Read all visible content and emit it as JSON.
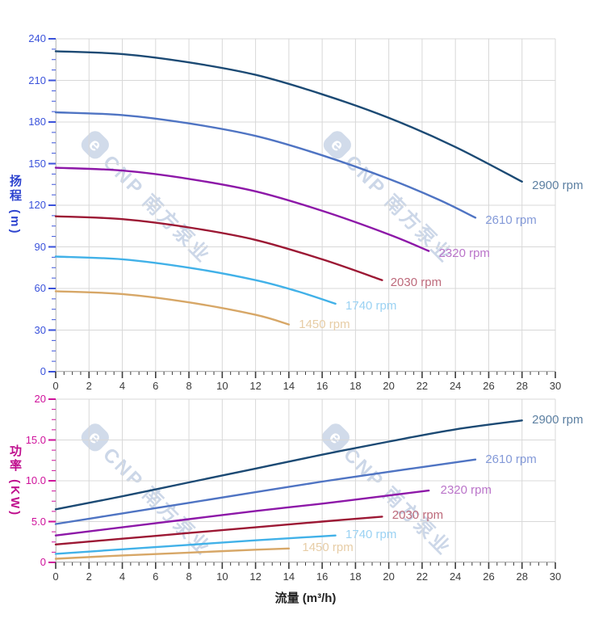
{
  "colors": {
    "grid": "#d8d8d8",
    "y_axis_line": "#c4c4c4",
    "x_axis_line": "#b4b4b4",
    "x_tick": "#3c3c3c",
    "x_tick_label": "#3c3c3c"
  },
  "watermark": {
    "logo_glyph": "e",
    "text": "CNP 南方泵业"
  },
  "chart_data": [
    {
      "type": "line",
      "title": "",
      "x_axis": {
        "min": 0,
        "max": 30,
        "major": 2,
        "minor": 0.5,
        "title": "",
        "tick_labels": [
          "0",
          "2",
          "4",
          "6",
          "8",
          "10",
          "12",
          "14",
          "16",
          "18",
          "20",
          "22",
          "24",
          "26",
          "28",
          "30"
        ]
      },
      "y_axis": {
        "min": 0,
        "max": 240,
        "major": 30,
        "minor": 7.5,
        "title": "扬程 (m)",
        "color": "#3a52db",
        "title_color": "#2d43cf",
        "tick_labels": [
          "0",
          "30",
          "60",
          "90",
          "120",
          "150",
          "180",
          "210",
          "240"
        ]
      },
      "grid": true,
      "legend_position": "curve-end-labels",
      "series": [
        {
          "name": "2900 rpm",
          "color": "#1c4a74",
          "label_color": "#5d80a2",
          "points": [
            [
              0,
              231
            ],
            [
              4,
              229
            ],
            [
              8,
              223
            ],
            [
              12,
              214
            ],
            [
              16,
              200
            ],
            [
              20,
              183
            ],
            [
              24,
              162
            ],
            [
              28,
              137
            ]
          ],
          "label_at": [
            28.6,
            134
          ]
        },
        {
          "name": "2610 rpm",
          "color": "#4f74c3",
          "label_color": "#8399d8",
          "points": [
            [
              0,
              187
            ],
            [
              4,
              185
            ],
            [
              8,
              179
            ],
            [
              12,
              170
            ],
            [
              16,
              156
            ],
            [
              20,
              139
            ],
            [
              23,
              124
            ],
            [
              25.2,
              111
            ]
          ],
          "label_at": [
            25.8,
            109
          ]
        },
        {
          "name": "2320 rpm",
          "color": "#8d18a8",
          "label_color": "#ba74c9",
          "points": [
            [
              0,
              147
            ],
            [
              4,
              145
            ],
            [
              8,
              139
            ],
            [
              12,
              130
            ],
            [
              16,
              116
            ],
            [
              20,
              99
            ],
            [
              22.4,
              87
            ]
          ],
          "label_at": [
            23.0,
            85
          ]
        },
        {
          "name": "2030 rpm",
          "color": "#9c1834",
          "label_color": "#bd6a7b",
          "points": [
            [
              0,
              112
            ],
            [
              4,
              110
            ],
            [
              8,
              104
            ],
            [
              12,
              95
            ],
            [
              16,
              81
            ],
            [
              19.6,
              66
            ]
          ],
          "label_at": [
            20.1,
            64
          ]
        },
        {
          "name": "1740 rpm",
          "color": "#41b1e8",
          "label_color": "#9bd2f3",
          "points": [
            [
              0,
              83
            ],
            [
              4,
              81
            ],
            [
              8,
              75
            ],
            [
              12,
              66
            ],
            [
              14.5,
              58
            ],
            [
              16.8,
              49
            ]
          ],
          "label_at": [
            17.4,
            47
          ]
        },
        {
          "name": "1450 rpm",
          "color": "#d7a767",
          "label_color": "#e7cda6",
          "points": [
            [
              0,
              58
            ],
            [
              4,
              56
            ],
            [
              8,
              50
            ],
            [
              12,
              41
            ],
            [
              14,
              34
            ]
          ],
          "label_at": [
            14.6,
            34
          ]
        }
      ]
    },
    {
      "type": "line",
      "title": "",
      "x_axis": {
        "min": 0,
        "max": 30,
        "major": 2,
        "minor": 0.5,
        "title": "流量 (m³/h)",
        "tick_labels": [
          "0",
          "2",
          "4",
          "6",
          "8",
          "10",
          "12",
          "14",
          "16",
          "18",
          "20",
          "22",
          "24",
          "26",
          "28",
          "30"
        ]
      },
      "y_axis": {
        "min": 0,
        "max": 20,
        "major": 5,
        "minor": 1.25,
        "title": "功率 (KW)",
        "color": "#cf119b",
        "title_color": "#bf0d8d",
        "tick_labels": [
          "0",
          "5.0",
          "10.0",
          "15.0",
          "20"
        ]
      },
      "grid": true,
      "legend_position": "curve-end-labels",
      "series": [
        {
          "name": "2900 rpm",
          "color": "#1c4a74",
          "label_color": "#5d80a2",
          "points": [
            [
              0,
              6.5
            ],
            [
              4,
              8.1
            ],
            [
              8,
              9.8
            ],
            [
              12,
              11.5
            ],
            [
              16,
              13.2
            ],
            [
              20,
              14.8
            ],
            [
              24,
              16.3
            ],
            [
              28,
              17.4
            ]
          ],
          "label_at": [
            28.6,
            17.4
          ]
        },
        {
          "name": "2610 rpm",
          "color": "#4f74c3",
          "label_color": "#8399d8",
          "points": [
            [
              0,
              4.7
            ],
            [
              4,
              6.0
            ],
            [
              8,
              7.3
            ],
            [
              12,
              8.6
            ],
            [
              16,
              9.9
            ],
            [
              20,
              11.1
            ],
            [
              25.2,
              12.6
            ]
          ],
          "label_at": [
            25.8,
            12.6
          ]
        },
        {
          "name": "2320 rpm",
          "color": "#8d18a8",
          "label_color": "#ba74c9",
          "points": [
            [
              0,
              3.3
            ],
            [
              4,
              4.3
            ],
            [
              8,
              5.3
            ],
            [
              12,
              6.3
            ],
            [
              16,
              7.2
            ],
            [
              20,
              8.2
            ],
            [
              22.4,
              8.8
            ]
          ],
          "label_at": [
            23.1,
            8.8
          ]
        },
        {
          "name": "2030 rpm",
          "color": "#9c1834",
          "label_color": "#bd6a7b",
          "points": [
            [
              0,
              2.2
            ],
            [
              4,
              2.9
            ],
            [
              8,
              3.6
            ],
            [
              12,
              4.3
            ],
            [
              16,
              5.0
            ],
            [
              19.6,
              5.6
            ]
          ],
          "label_at": [
            20.2,
            5.7
          ]
        },
        {
          "name": "1740 rpm",
          "color": "#41b1e8",
          "label_color": "#9bd2f3",
          "points": [
            [
              0,
              1.05
            ],
            [
              4,
              1.6
            ],
            [
              8,
              2.15
            ],
            [
              12,
              2.7
            ],
            [
              16.8,
              3.3
            ]
          ],
          "label_at": [
            17.4,
            3.35
          ]
        },
        {
          "name": "1450 rpm",
          "color": "#d7a767",
          "label_color": "#e7cda6",
          "points": [
            [
              0,
              0.45
            ],
            [
              4,
              0.85
            ],
            [
              8,
              1.2
            ],
            [
              12,
              1.55
            ],
            [
              14,
              1.7
            ]
          ],
          "label_at": [
            14.8,
            1.75
          ]
        }
      ]
    }
  ]
}
